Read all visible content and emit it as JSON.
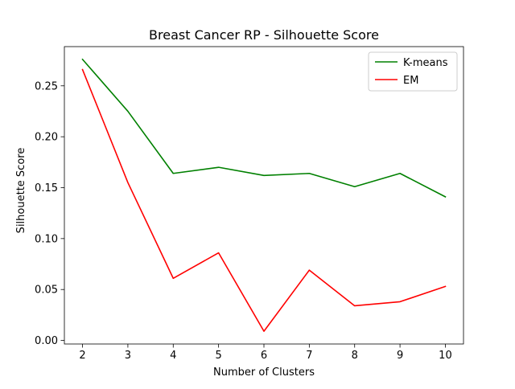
{
  "chart_data": {
    "type": "line",
    "title": "Breast Cancer RP - Silhouette Score",
    "xlabel": "Number of Clusters",
    "ylabel": "Silhouette Score",
    "x": [
      2,
      3,
      4,
      5,
      6,
      7,
      8,
      9,
      10
    ],
    "x_ticks": [
      "2",
      "3",
      "4",
      "5",
      "6",
      "7",
      "8",
      "9",
      "10"
    ],
    "y_ticks": [
      "0.00",
      "0.05",
      "0.10",
      "0.15",
      "0.20",
      "0.25"
    ],
    "y_tick_values": [
      0.0,
      0.05,
      0.1,
      0.15,
      0.2,
      0.25
    ],
    "xlim": [
      1.6,
      10.4
    ],
    "ylim": [
      -0.0035,
      0.2885
    ],
    "grid": false,
    "legend_position": "top-right",
    "series": [
      {
        "name": "K-means",
        "color": "#008000",
        "values": [
          0.276,
          0.225,
          0.164,
          0.17,
          0.162,
          0.164,
          0.151,
          0.164,
          0.141
        ]
      },
      {
        "name": "EM",
        "color": "#ff0000",
        "values": [
          0.266,
          0.155,
          0.061,
          0.086,
          0.009,
          0.069,
          0.034,
          0.038,
          0.053
        ]
      }
    ]
  }
}
